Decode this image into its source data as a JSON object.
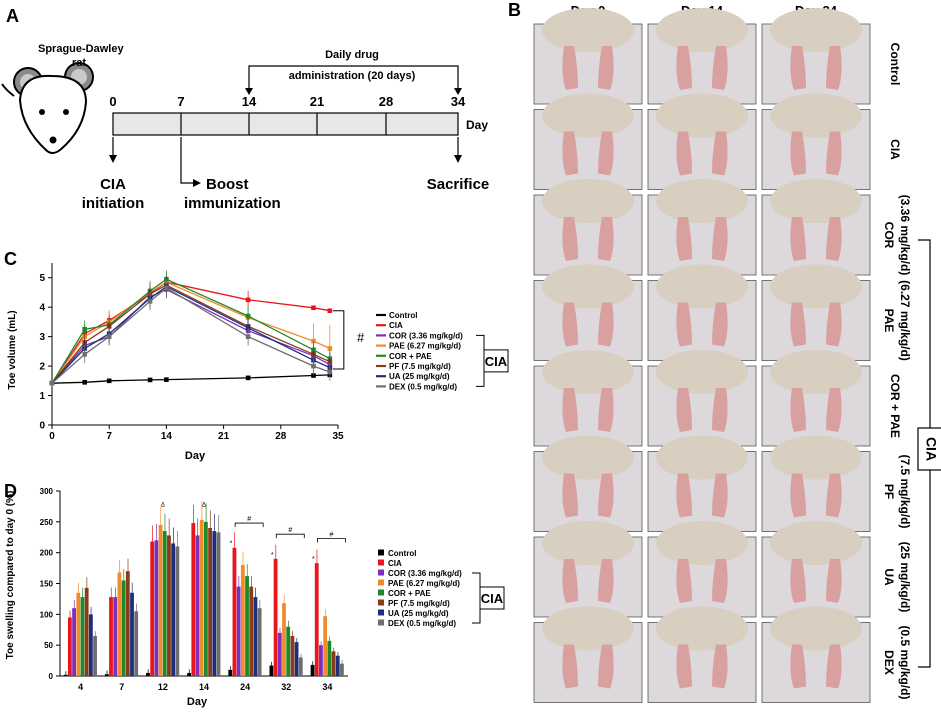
{
  "colors": {
    "Control": "#000000",
    "CIA": "#e8161b",
    "COR": "#7b2fbe",
    "PAE": "#f28b2b",
    "CORPAE": "#1d8a2a",
    "PF": "#8b3a1a",
    "UA": "#1c2f7a",
    "DEX": "#6e6e6e",
    "photo_bg": "#dcd8dc",
    "photo_fur": "#d8cfc0",
    "photo_paw": "#d9a0a0"
  },
  "panelA": {
    "letter": "A",
    "rat_label_1": "Sprague-Dawley",
    "rat_label_2": "rat",
    "drug_label_1": "Daily drug",
    "drug_label_2": "administration (20 days)",
    "days": [
      "0",
      "7",
      "14",
      "21",
      "28",
      "34"
    ],
    "axis_unit": "Day",
    "events": {
      "cia_1": "CIA",
      "cia_2": "initiation",
      "boost_1": "Boost",
      "boost_2": "immunization",
      "sacrifice": "Sacrifice"
    }
  },
  "panelB": {
    "letter": "B",
    "columns": [
      "Day 0",
      "Day 14",
      "Day 34"
    ],
    "rows": [
      {
        "l1": "Control",
        "l2": ""
      },
      {
        "l1": "CIA",
        "l2": ""
      },
      {
        "l1": "COR",
        "l2": "(3.36 mg/kg/d)"
      },
      {
        "l1": "PAE",
        "l2": "(6.27 mg/kg/d)"
      },
      {
        "l1": "COR + PAE",
        "l2": ""
      },
      {
        "l1": "PF",
        "l2": "(7.5 mg/kg/d)"
      },
      {
        "l1": "UA",
        "l2": "(25 mg/kg/d)"
      },
      {
        "l1": "DEX",
        "l2": "(0.5 mg/kg/d)"
      }
    ],
    "group_label": "CIA"
  },
  "panelC": {
    "letter": "C",
    "ylabel": "Toe volume (mL)",
    "xlabel": "Day",
    "xticks": [
      "0",
      "7",
      "14",
      "21",
      "28",
      "35"
    ],
    "yticks": [
      "0",
      "1",
      "2",
      "3",
      "4",
      "5"
    ],
    "legend": [
      "Control",
      "CIA",
      "COR (3.36 mg/kg/d)",
      "PAE (6.27 mg/kg/d)",
      "COR + PAE",
      "PF (7.5 mg/kg/d)",
      "UA (25 mg/kg/d)",
      "DEX (0.5 mg/kg/d)"
    ],
    "bracket_label": "CIA",
    "sig": "#"
  },
  "panelD": {
    "letter": "D",
    "ylabel": "Toe swelling compared to day 0 (%)",
    "xlabel": "Day",
    "categories": [
      "4",
      "7",
      "12",
      "14",
      "24",
      "32",
      "34"
    ],
    "yticks": [
      "0",
      "50",
      "100",
      "150",
      "200",
      "250",
      "300"
    ],
    "legend": [
      "Control",
      "CIA",
      "COR (3.36 mg/kg/d)",
      "PAE (6.27 mg/kg/d)",
      "COR + PAE",
      "PF (7.5 mg/kg/d)",
      "UA (25 mg/kg/d)",
      "DEX (0.5 mg/kg/d)"
    ],
    "bracket_label": "CIA",
    "symbols": {
      "hash": "#",
      "star": "*",
      "delta": "Δ",
      "dagger": "†"
    }
  },
  "chart_data": [
    {
      "type": "line",
      "title": "",
      "xlabel": "Day",
      "ylabel": "Toe volume (mL)",
      "xlim": [
        0,
        35
      ],
      "ylim": [
        0,
        5.5
      ],
      "series": [
        {
          "name": "Control",
          "x": [
            0,
            4,
            7,
            12,
            14,
            24,
            32,
            34
          ],
          "values": [
            1.42,
            1.45,
            1.5,
            1.53,
            1.54,
            1.6,
            1.68,
            1.7
          ],
          "err": [
            0.05,
            0.05,
            0.05,
            0.05,
            0.05,
            0.05,
            0.05,
            0.05
          ]
        },
        {
          "name": "CIA",
          "x": [
            0,
            4,
            7,
            12,
            14,
            24,
            32,
            34
          ],
          "values": [
            1.42,
            3.1,
            3.55,
            4.45,
            4.85,
            4.25,
            3.98,
            3.88
          ],
          "err": [
            0.1,
            0.3,
            0.3,
            0.3,
            0.3,
            0.3,
            0.05,
            0.05
          ]
        },
        {
          "name": "COR (3.36 mg/kg/d)",
          "x": [
            0,
            4,
            7,
            12,
            14,
            24,
            32,
            34
          ],
          "values": [
            1.42,
            2.7,
            3.0,
            4.35,
            4.6,
            3.2,
            2.35,
            2.05
          ],
          "err": [
            0.1,
            0.3,
            0.3,
            0.3,
            0.3,
            0.3,
            0.3,
            0.3
          ]
        },
        {
          "name": "PAE (6.27 mg/kg/d)",
          "x": [
            0,
            4,
            7,
            12,
            14,
            24,
            32,
            34
          ],
          "values": [
            1.42,
            3.0,
            3.5,
            4.5,
            4.85,
            3.65,
            2.85,
            2.6
          ],
          "err": [
            0.1,
            0.4,
            0.4,
            0.4,
            0.3,
            0.3,
            0.6,
            0.8
          ]
        },
        {
          "name": "COR + PAE",
          "x": [
            0,
            4,
            7,
            12,
            14,
            24,
            32,
            34
          ],
          "values": [
            1.42,
            3.25,
            3.4,
            4.55,
            4.95,
            3.7,
            2.55,
            2.25
          ],
          "err": [
            0.1,
            0.3,
            0.3,
            0.3,
            0.3,
            0.3,
            0.3,
            0.3
          ]
        },
        {
          "name": "PF (7.5 mg/kg/d)",
          "x": [
            0,
            4,
            7,
            12,
            14,
            24,
            32,
            34
          ],
          "values": [
            1.42,
            2.8,
            3.35,
            4.45,
            4.75,
            3.35,
            2.4,
            2.15
          ],
          "err": [
            0.1,
            0.3,
            0.3,
            0.3,
            0.3,
            0.3,
            0.3,
            0.3
          ]
        },
        {
          "name": "UA (25 mg/kg/d)",
          "x": [
            0,
            4,
            7,
            12,
            14,
            24,
            32,
            34
          ],
          "values": [
            1.42,
            2.6,
            3.1,
            4.3,
            4.7,
            3.3,
            2.2,
            1.95
          ],
          "err": [
            0.1,
            0.3,
            0.3,
            0.3,
            0.3,
            0.3,
            0.3,
            0.3
          ]
        },
        {
          "name": "DEX (0.5 mg/kg/d)",
          "x": [
            0,
            4,
            7,
            12,
            14,
            24,
            32,
            34
          ],
          "values": [
            1.42,
            2.4,
            3.0,
            4.2,
            4.65,
            3.0,
            2.0,
            1.8
          ],
          "err": [
            0.1,
            0.3,
            0.3,
            0.3,
            0.3,
            0.3,
            0.3,
            0.3
          ]
        }
      ]
    },
    {
      "type": "bar",
      "title": "",
      "xlabel": "Day",
      "ylabel": "Toe swelling compared to day 0 (%)",
      "ylim": [
        0,
        300
      ],
      "categories": [
        "4",
        "7",
        "12",
        "14",
        "24",
        "32",
        "34"
      ],
      "series": [
        {
          "name": "Control",
          "values": [
            2,
            3,
            5,
            5,
            10,
            17,
            18
          ]
        },
        {
          "name": "CIA",
          "values": [
            95,
            128,
            218,
            248,
            208,
            190,
            183
          ]
        },
        {
          "name": "COR (3.36 mg/kg/d)",
          "values": [
            110,
            128,
            220,
            228,
            145,
            70,
            50
          ]
        },
        {
          "name": "PAE (6.27 mg/kg/d)",
          "values": [
            135,
            168,
            245,
            253,
            180,
            118,
            97
          ]
        },
        {
          "name": "COR + PAE",
          "values": [
            128,
            155,
            235,
            250,
            162,
            80,
            57
          ]
        },
        {
          "name": "PF (7.5 mg/kg/d)",
          "values": [
            143,
            170,
            228,
            240,
            145,
            65,
            40
          ]
        },
        {
          "name": "UA (25 mg/kg/d)",
          "values": [
            100,
            135,
            215,
            235,
            128,
            55,
            33
          ]
        },
        {
          "name": "DEX (0.5 mg/kg/d)",
          "values": [
            65,
            105,
            210,
            233,
            110,
            30,
            20
          ]
        }
      ]
    }
  ]
}
